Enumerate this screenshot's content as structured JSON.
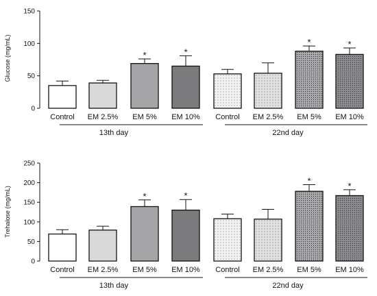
{
  "chart_data": [
    {
      "type": "bar",
      "ylabel": "Glucose (mg/mL)",
      "ylim": [
        0,
        150
      ],
      "yticks": [
        0,
        50,
        100,
        150
      ],
      "categories": [
        "Control",
        "EM 2.5%",
        "EM 5%",
        "EM 10%",
        "Control",
        "EM 2.5%",
        "EM 5%",
        "EM 10%"
      ],
      "groups": [
        {
          "label": "13th day",
          "categories": [
            "Control",
            "EM 2.5%",
            "EM 5%",
            "EM 10%"
          ]
        },
        {
          "label": "22nd day",
          "categories": [
            "Control",
            "EM 2.5%",
            "EM 5%",
            "EM 10%"
          ]
        }
      ],
      "values": [
        35,
        39,
        69,
        65,
        53,
        54,
        88,
        83
      ],
      "errors": [
        7,
        4,
        7,
        16,
        7,
        16,
        8,
        10
      ],
      "significant": [
        "",
        "",
        "*",
        "*",
        "",
        "",
        "*",
        "*"
      ],
      "grid": false
    },
    {
      "type": "bar",
      "ylabel": "Trehalose (mg/mL)",
      "ylim": [
        0,
        250
      ],
      "yticks": [
        0,
        50,
        100,
        150,
        200,
        250
      ],
      "categories": [
        "Control",
        "EM 2.5%",
        "EM 5%",
        "EM 10%",
        "Control",
        "EM 2.5%",
        "EM 5%",
        "EM 10%"
      ],
      "groups": [
        {
          "label": "13th day",
          "categories": [
            "Control",
            "EM 2.5%",
            "EM 5%",
            "EM 10%"
          ]
        },
        {
          "label": "22nd day",
          "categories": [
            "Control",
            "EM 2.5%",
            "EM 5%",
            "EM 10%"
          ]
        }
      ],
      "values": [
        69,
        79,
        139,
        130,
        108,
        107,
        178,
        167
      ],
      "errors": [
        11,
        10,
        17,
        27,
        12,
        25,
        17,
        15
      ],
      "significant": [
        "",
        "",
        "*",
        "*",
        "",
        "",
        "*",
        "*"
      ],
      "grid": false
    }
  ],
  "bar_fills": [
    "#ffffff",
    "#d9d9d9",
    "#a5a5a8",
    "#7b7b7d",
    "#f2f2f2",
    "#e1e1e1",
    "#a9a9ad",
    "#8d8d90"
  ],
  "bar_patterns": [
    "none",
    "none",
    "none",
    "none",
    "dots-sparse",
    "dots-sparse",
    "dots-dense",
    "dots-dense"
  ],
  "axis_color": "#111111"
}
